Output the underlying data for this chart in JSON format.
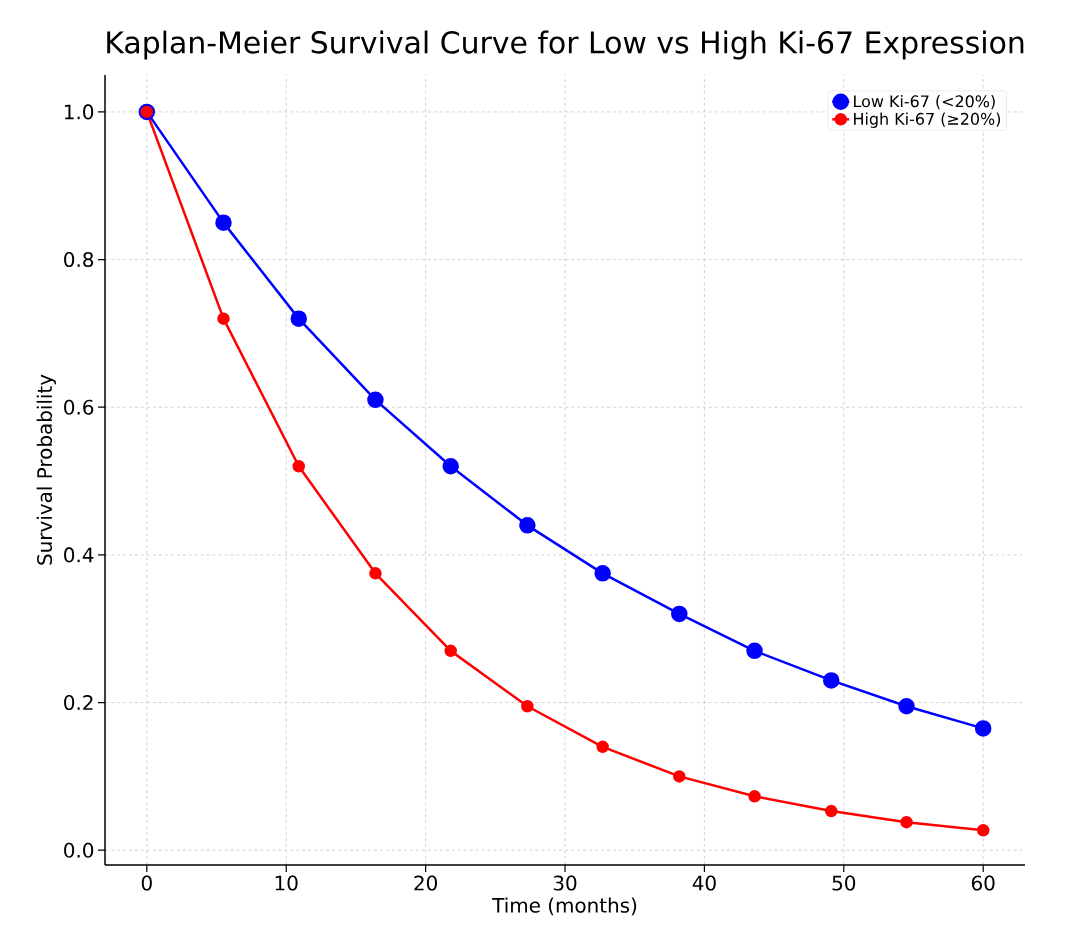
{
  "chart_data": {
    "type": "line",
    "title": "Kaplan-Meier Survival Curve for Low vs High Ki-67 Expression",
    "xlabel": "Time (months)",
    "ylabel": "Survival Probability",
    "x": [
      0,
      5.5,
      10.9,
      16.4,
      21.8,
      27.3,
      32.7,
      38.2,
      43.6,
      49.1,
      54.5,
      60
    ],
    "series": [
      {
        "name": "Low Ki-67 (<20%)",
        "color": "#0000ff",
        "values": [
          1.0,
          0.85,
          0.72,
          0.61,
          0.52,
          0.44,
          0.375,
          0.32,
          0.27,
          0.23,
          0.195,
          0.165
        ]
      },
      {
        "name": "High Ki-67 (≥20%)",
        "color": "#ff0000",
        "values": [
          1.0,
          0.72,
          0.52,
          0.375,
          0.27,
          0.195,
          0.14,
          0.1,
          0.073,
          0.053,
          0.038,
          0.027
        ]
      }
    ],
    "xlim": [
      -3,
      63
    ],
    "ylim": [
      -0.02,
      1.05
    ],
    "xticks": [
      0,
      10,
      20,
      30,
      40,
      50,
      60
    ],
    "yticks": [
      {
        "value": 0,
        "label": "0.0"
      },
      {
        "value": 0.2,
        "label": "0.2"
      },
      {
        "value": 0.4,
        "label": "0.4"
      },
      {
        "value": 0.6,
        "label": "0.6"
      },
      {
        "value": 0.8,
        "label": "0.8"
      },
      {
        "value": 1.0,
        "label": "1.0"
      }
    ],
    "grid": true,
    "legend": "top right",
    "marker": "circle",
    "line_style": "solid"
  }
}
